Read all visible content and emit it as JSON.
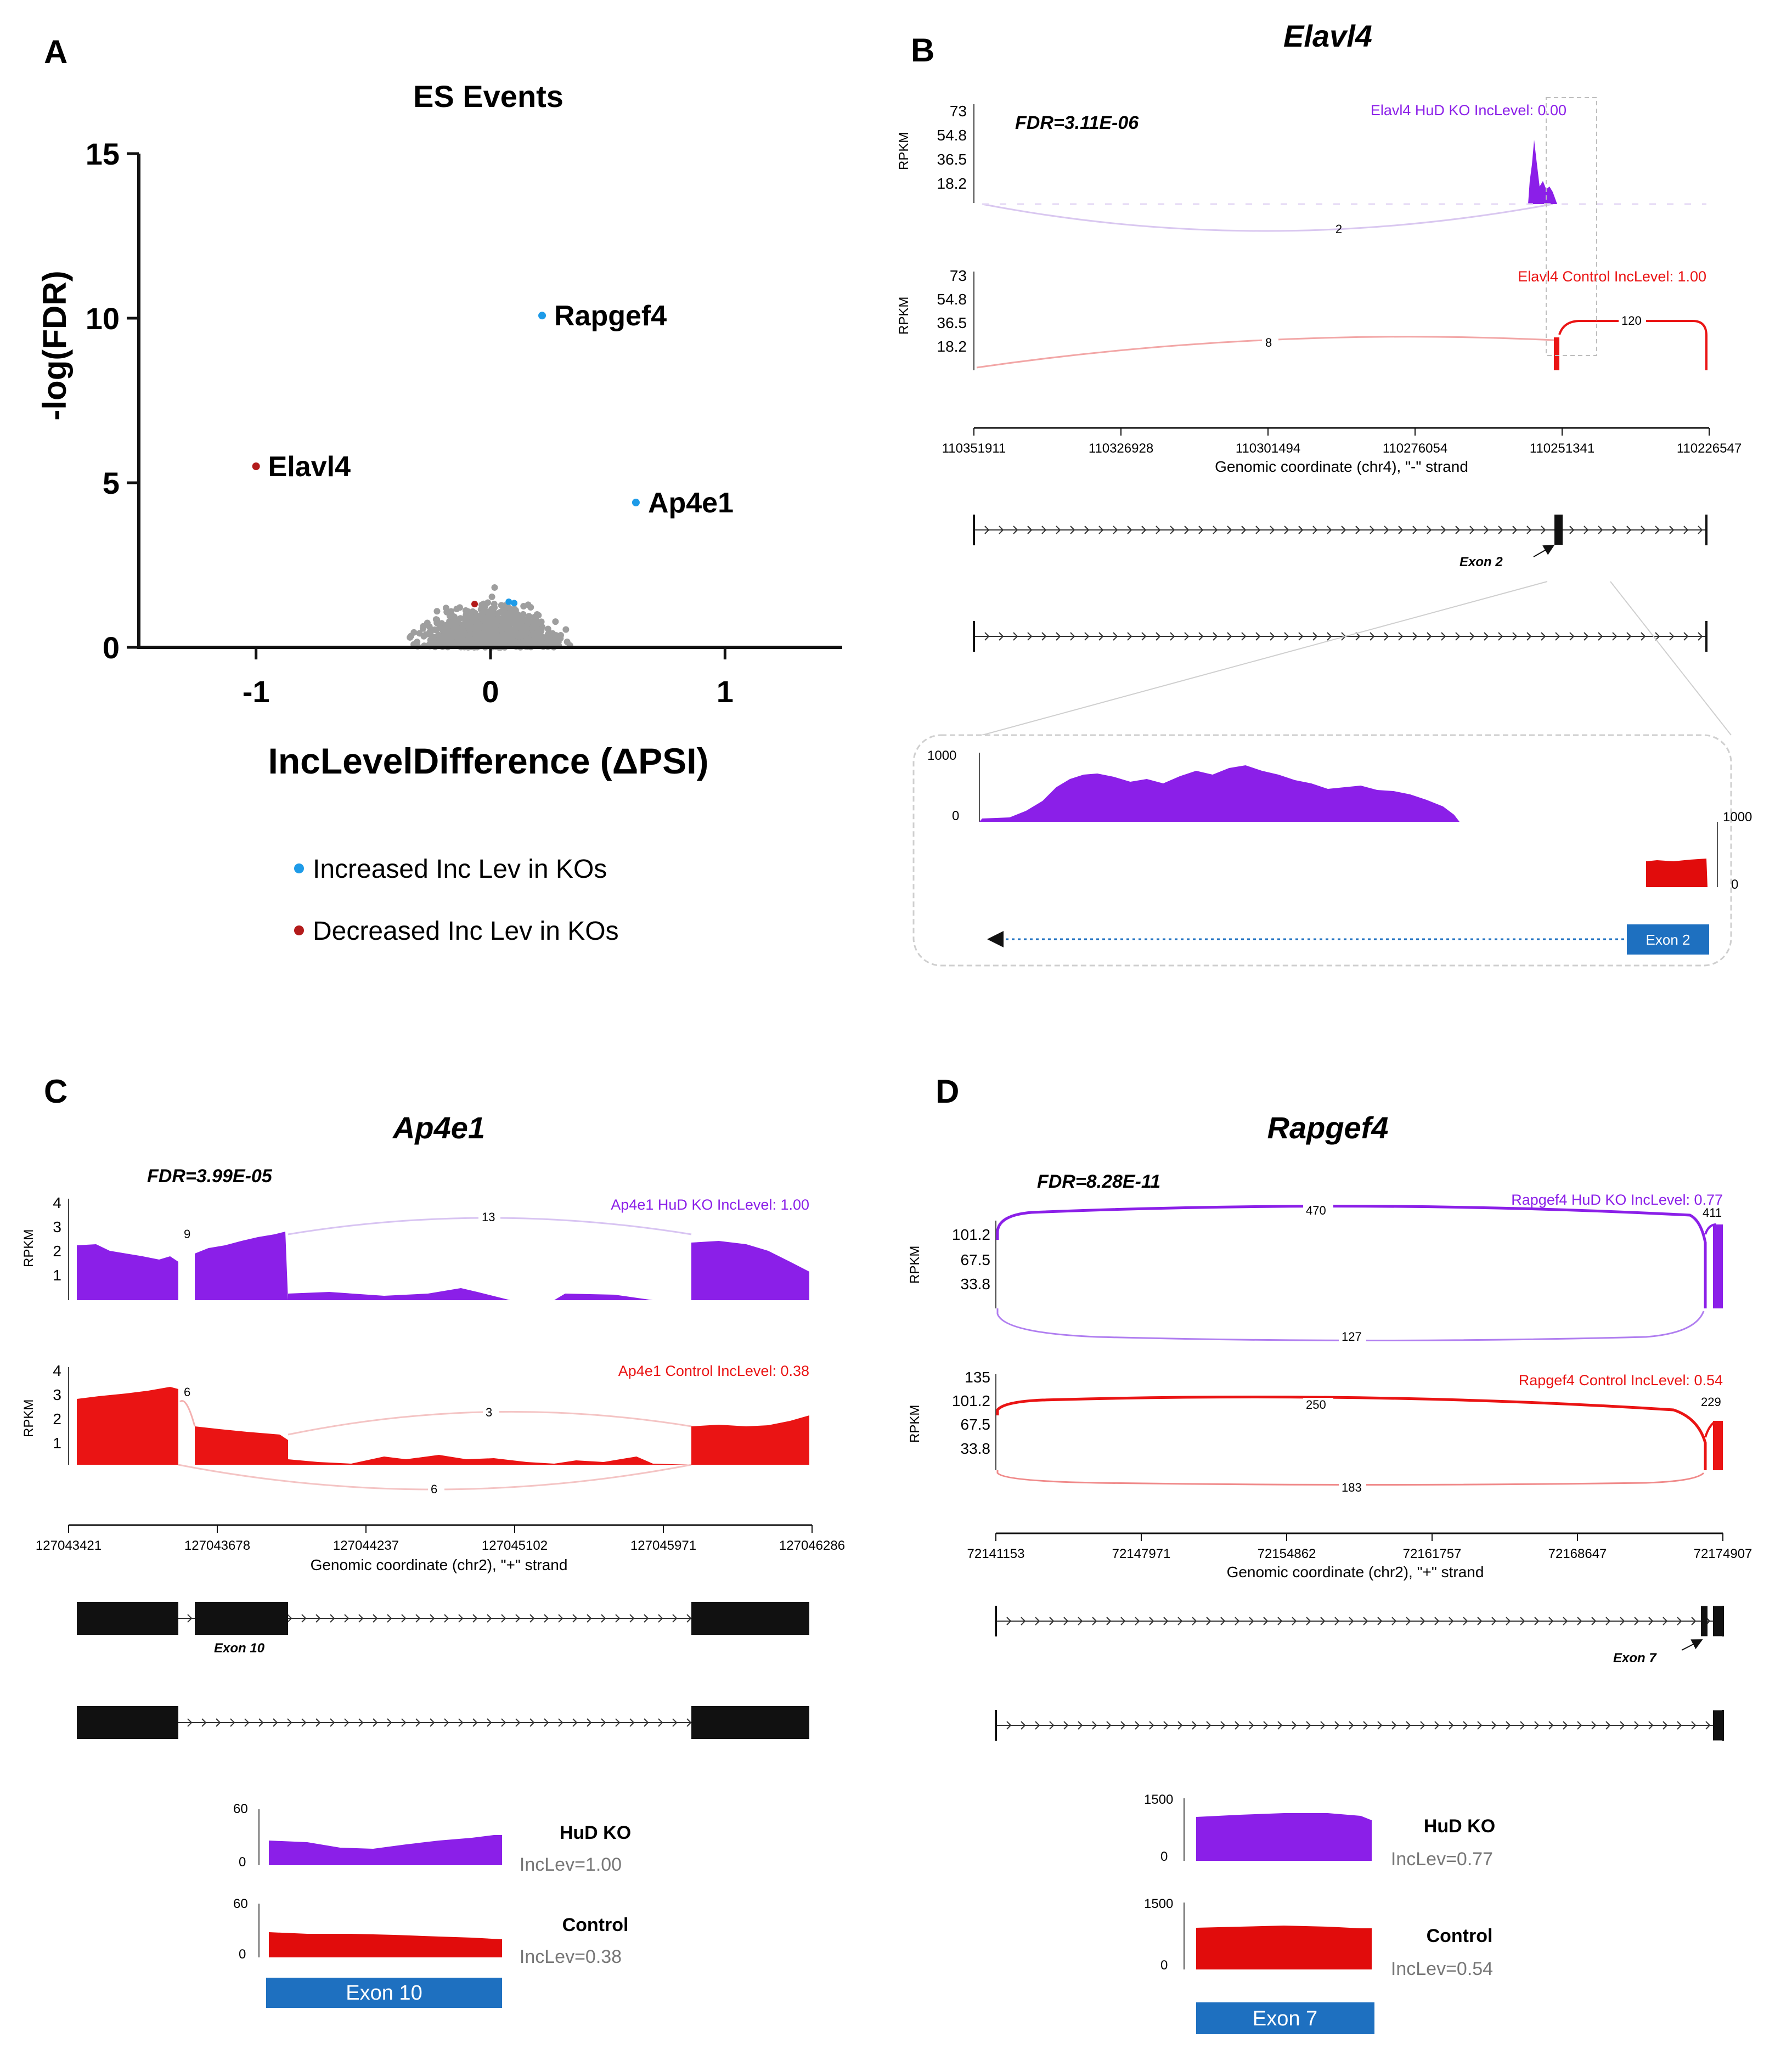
{
  "colors": {
    "ko": "#8b1fe8",
    "ko_light": "#c9a3f5",
    "control": "#ea1414",
    "control_light": "#f6b0b0",
    "up": "#1e9be8",
    "down": "#b31b1b",
    "ns": "#9e9e9e",
    "exon_box": "#1e70c0"
  },
  "panelA": {
    "letter": "A",
    "chart_data": {
      "type": "scatter",
      "title": "ES Events",
      "xlabel": "IncLevelDifference (ΔPSI)",
      "ylabel": "-log(FDR)",
      "xlim": [
        -1.5,
        1.5
      ],
      "ylim": [
        0,
        15
      ],
      "xticks": [
        -1,
        0,
        1
      ],
      "yticks": [
        0,
        5,
        10,
        15
      ],
      "labeled_points": [
        {
          "name": "Rapgef4",
          "x": 0.22,
          "y": 10.08,
          "group": "up"
        },
        {
          "name": "Ap4e1",
          "x": 0.62,
          "y": 4.4,
          "group": "up"
        },
        {
          "name": "Elavl4",
          "x": -1.0,
          "y": 5.5,
          "group": "down"
        }
      ],
      "legend": [
        {
          "label": "Increased Inc Lev in KOs",
          "group": "up"
        },
        {
          "label": "Decreased Inc Lev in KOs",
          "group": "down"
        }
      ]
    }
  },
  "panelB": {
    "letter": "B",
    "gene": "Elavl4",
    "fdr": "FDR=3.11E-06",
    "ko_label": "Elavl4 HuD KO IncLevel: 0.00",
    "ctrl_label": "Elavl4 Control IncLevel: 1.00",
    "rpkm": "RPKM",
    "yticks": [
      "73",
      "54.8",
      "36.5",
      "18.2"
    ],
    "junctions_ko": [
      "2"
    ],
    "junctions_ctrl": [
      "8",
      "120"
    ],
    "coords": [
      "110351911",
      "110326928",
      "110301494",
      "110276054",
      "110251341",
      "110226547"
    ],
    "axis_title": "Genomic coordinate (chr4), \"-\" strand",
    "exon_label": "Exon 2",
    "zoom_ymax": "1000",
    "zoom_ymin": "0",
    "zoom_exon": "Exon 2"
  },
  "panelC": {
    "letter": "C",
    "gene": "Ap4e1",
    "fdr": "FDR=3.99E-05",
    "ko_label": "Ap4e1 HuD KO IncLevel: 1.00",
    "ctrl_label": "Ap4e1 Control IncLevel: 0.38",
    "rpkm": "RPKM",
    "yticks": [
      "4",
      "3",
      "2",
      "1"
    ],
    "junctions_ko": [
      "9",
      "13"
    ],
    "junctions_ctrl": [
      "6",
      "3",
      "6"
    ],
    "coords": [
      "127043421",
      "127043678",
      "127044237",
      "127045102",
      "127045971",
      "127046286"
    ],
    "axis_title": "Genomic coordinate (chr2), \"+\" strand",
    "exon_label": "Exon 10",
    "zoom_ymax": "60",
    "zoom_ymin": "0",
    "ko_name": "HuD KO",
    "ko_inclev": "IncLev=1.00",
    "ctrl_name": "Control",
    "ctrl_inclev": "IncLev=0.38",
    "zoom_exon": "Exon 10"
  },
  "panelD": {
    "letter": "D",
    "gene": "Rapgef4",
    "fdr": "FDR=8.28E-11",
    "ko_label": "Rapgef4 HuD KO IncLevel: 0.77",
    "ctrl_label": "Rapgef4 Control IncLevel: 0.54",
    "rpkm": "RPKM",
    "yticks_ko": [
      "101.2",
      "67.5",
      "33.8"
    ],
    "yticks_ctrl": [
      "135",
      "101.2",
      "67.5",
      "33.8"
    ],
    "junctions_ko": [
      "470",
      "411",
      "127"
    ],
    "junctions_ctrl": [
      "250",
      "229",
      "183"
    ],
    "coords": [
      "72141153",
      "72147971",
      "72154862",
      "72161757",
      "72168647",
      "72174907"
    ],
    "axis_title": "Genomic coordinate (chr2), \"+\" strand",
    "exon_label": "Exon 7",
    "zoom_ymax": "1500",
    "zoom_ymin": "0",
    "ko_name": "HuD KO",
    "ko_inclev": "IncLev=0.77",
    "ctrl_name": "Control",
    "ctrl_inclev": "IncLev=0.54",
    "zoom_exon": "Exon 7"
  }
}
